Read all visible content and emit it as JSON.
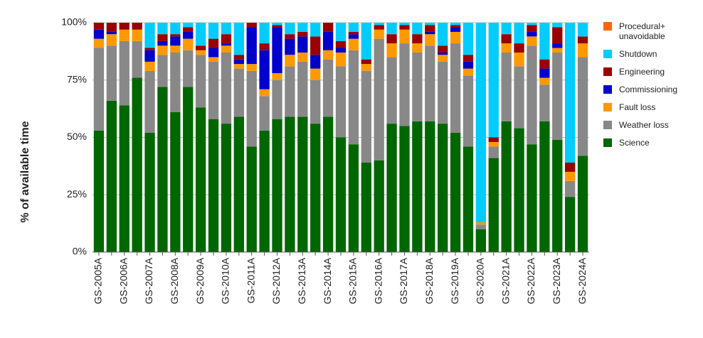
{
  "chart_data": {
    "type": "stacked_bar",
    "ylabel": "% of available time",
    "categories": [
      "GS-2005A",
      null,
      "GS-2006A",
      null,
      "GS-2007A",
      null,
      "GS-2008A",
      null,
      "GS-2009A",
      null,
      "GS-2010A",
      null,
      "GS-2011A",
      null,
      "GS-2012A",
      null,
      "GS-2013A",
      null,
      "GS-2014A",
      null,
      "GS-2015A",
      null,
      "GS-2016A",
      null,
      "GS-2017A",
      null,
      "GS-2018A",
      null,
      "GS-2019A",
      null,
      "GS-2020A",
      null,
      "GS-2021A",
      null,
      "GS-2022A",
      null,
      "GS-2023A",
      null,
      "GS-2024A"
    ],
    "series": [
      {
        "name": "Science",
        "color": "#006600",
        "values": [
          53,
          66,
          64,
          76,
          52,
          72,
          61,
          72,
          63,
          58,
          56,
          59,
          46,
          53,
          58,
          59,
          59,
          56,
          59,
          50,
          47,
          39,
          40,
          56,
          55,
          57,
          57,
          56,
          52,
          46,
          10,
          41,
          57,
          54,
          47,
          57,
          49,
          24,
          42
        ]
      },
      {
        "name": "Weather loss",
        "color": "#888888",
        "values": [
          36,
          24,
          28,
          16,
          27,
          14,
          26,
          16,
          23,
          25,
          31,
          21,
          33,
          15,
          17,
          22,
          24,
          19,
          25,
          31,
          41,
          40,
          53,
          29,
          36,
          30,
          33,
          27,
          39,
          31,
          2,
          5,
          30,
          27,
          43,
          16,
          38,
          7,
          43
        ]
      },
      {
        "name": "Fault loss",
        "color": "#ff9900",
        "values": [
          4,
          5,
          5,
          5,
          4,
          4,
          3,
          5,
          2,
          2,
          3,
          2,
          3,
          3,
          3,
          5,
          4,
          5,
          4,
          6,
          5,
          3,
          4,
          6,
          6,
          4,
          5,
          3,
          5,
          3,
          1,
          2,
          4,
          6,
          4,
          3,
          2,
          4,
          6
        ]
      },
      {
        "name": "Commissioning",
        "color": "#0000cc",
        "values": [
          4,
          1,
          0,
          0,
          5,
          2,
          4,
          3,
          0,
          4,
          1,
          2,
          16,
          17,
          20,
          7,
          7,
          6,
          8,
          2,
          2,
          0,
          0,
          0,
          0,
          0,
          1,
          1,
          2,
          3,
          0,
          0,
          0,
          0,
          2,
          4,
          2,
          0,
          0
        ]
      },
      {
        "name": "Engineering",
        "color": "#990000",
        "values": [
          3,
          4,
          3,
          3,
          1,
          3,
          1,
          2,
          2,
          4,
          4,
          2,
          2,
          3,
          1,
          2,
          2,
          8,
          4,
          3,
          1,
          2,
          2,
          4,
          2,
          4,
          3,
          3,
          1,
          3,
          0,
          2,
          4,
          4,
          3,
          4,
          7,
          4,
          3
        ]
      },
      {
        "name": "Shutdown",
        "color": "#00ccff",
        "values": [
          0,
          0,
          0,
          0,
          11,
          5,
          5,
          2,
          10,
          7,
          5,
          14,
          0,
          9,
          1,
          5,
          4,
          6,
          0,
          8,
          4,
          16,
          1,
          5,
          1,
          5,
          1,
          10,
          1,
          14,
          87,
          50,
          5,
          9,
          1,
          16,
          2,
          61,
          6
        ]
      },
      {
        "name": "Procedural+ unavoidable",
        "color": "#ff6600",
        "values": [
          0,
          0,
          0,
          0,
          0,
          0,
          0,
          0,
          0,
          0,
          0,
          0,
          0,
          0,
          0,
          0,
          0,
          0,
          0,
          0,
          0,
          0,
          0,
          0,
          0,
          0,
          0,
          0,
          0,
          0,
          0,
          0,
          0,
          0,
          0,
          0,
          0,
          0,
          0
        ]
      }
    ],
    "ylim": [
      0,
      100
    ],
    "yticks": [
      {
        "value": 0,
        "label": "0%"
      },
      {
        "value": 25,
        "label": "25%"
      },
      {
        "value": 50,
        "label": "50%"
      },
      {
        "value": 75,
        "label": "75%"
      },
      {
        "value": 100,
        "label": "100%"
      }
    ],
    "grid": true,
    "legend": "right"
  }
}
